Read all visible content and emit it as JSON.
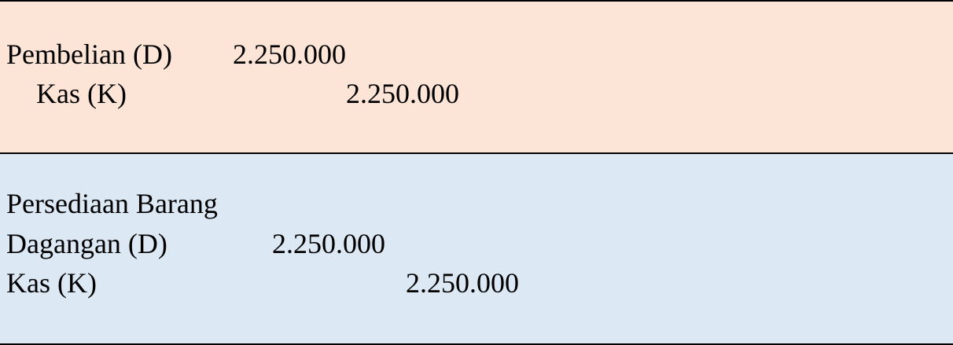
{
  "entries": [
    {
      "lines": [
        {
          "account": "Pembelian (D)",
          "debit": "2.250.000"
        },
        {
          "account": "Kas (K)",
          "credit": "2.250.000"
        }
      ]
    },
    {
      "lines": [
        {
          "account": "Persediaan Barang"
        },
        {
          "account": "Dagangan (D)",
          "debit": "2.250.000"
        },
        {
          "account": "Kas (K)",
          "credit": "2.250.000"
        }
      ]
    }
  ],
  "colors": {
    "top_panel": "#fce4d6",
    "bottom_panel": "#dde8f5",
    "border": "#000000"
  }
}
